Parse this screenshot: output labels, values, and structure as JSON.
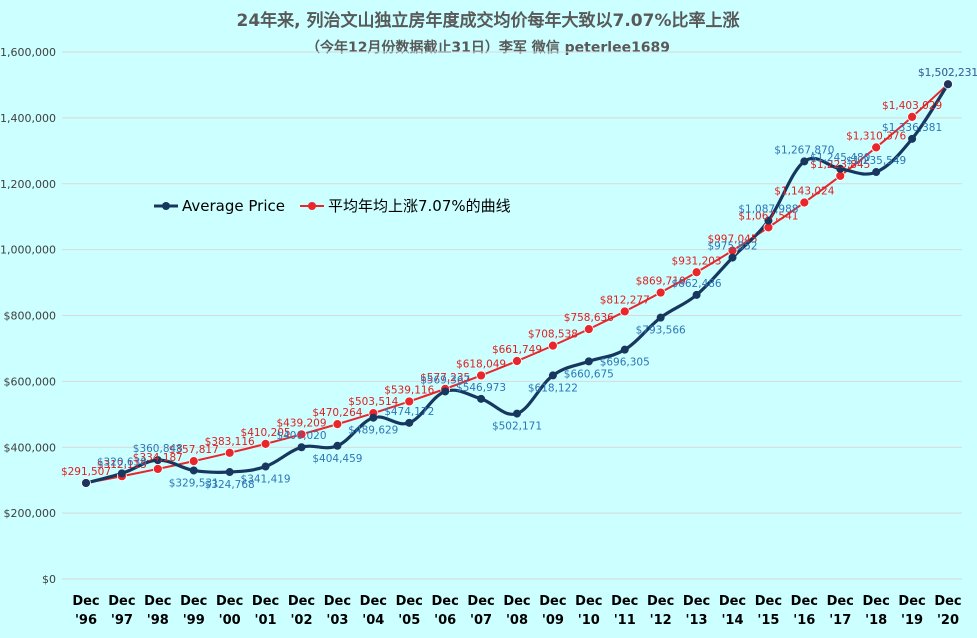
{
  "chart_data": {
    "type": "line",
    "title": "24年来, 列治文山独立房年度成交均价每年大致以7.07%比率上涨",
    "subtitle": "（今年12月份数据截止31日）李军 微信 peterlee1689",
    "categories": [
      "Dec '96",
      "Dec '97",
      "Dec '98",
      "Dec '99",
      "Dec '00",
      "Dec '01",
      "Dec '02",
      "Dec '03",
      "Dec '04",
      "Dec '05",
      "Dec '06",
      "Dec '07",
      "Dec '08",
      "Dec '09",
      "Dec '10",
      "Dec '11",
      "Dec '12",
      "Dec '13",
      "Dec '14",
      "Dec '15",
      "Dec '16",
      "Dec '17",
      "Dec '18",
      "Dec '19",
      "Dec '20"
    ],
    "x_top": [
      "Dec",
      "Dec",
      "Dec",
      "Dec",
      "Dec",
      "Dec",
      "Dec",
      "Dec",
      "Dec",
      "Dec",
      "Dec",
      "Dec",
      "Dec",
      "Dec",
      "Dec",
      "Dec",
      "Dec",
      "Dec",
      "Dec",
      "Dec",
      "Dec",
      "Dec",
      "Dec",
      "Dec",
      "Dec"
    ],
    "x_bottom": [
      "'96",
      "'97",
      "'98",
      "'99",
      "'00",
      "'01",
      "'02",
      "'03",
      "'04",
      "'05",
      "'06",
      "'07",
      "'08",
      "'09",
      "'10",
      "'11",
      "'12",
      "'13",
      "'14",
      "'15",
      "'16",
      "'17",
      "'18",
      "'19",
      "'20"
    ],
    "series": [
      {
        "name": "Average Price",
        "color": "#17375e",
        "values": [
          291507,
          320638,
          360848,
          329531,
          324768,
          341419,
          400020,
          404459,
          489629,
          474172,
          569367,
          546973,
          502171,
          618122,
          660675,
          696305,
          793566,
          862486,
          975852,
          1087988,
          1267870,
          1245480,
          1235549,
          1336381,
          1502231
        ],
        "labels": [
          "",
          "$320,638",
          "$360,848",
          "$329,531",
          "$324,768",
          "$341,419",
          "$400,020",
          "$404,459",
          "$489,629",
          "$474,172",
          "$569,367",
          "$546,973",
          "$502,171",
          "$618,122",
          "$660,675",
          "$696,305",
          "$793,566",
          "$862,486",
          "$975,852",
          "$1,087,988",
          "$1,267,870",
          "$1,245,480",
          "$1,235,549",
          "$1,336,381",
          "$1,502,231"
        ]
      },
      {
        "name": "平均年均上涨7.07%的曲线",
        "color": "#e8262b",
        "values": [
          291507,
          312115,
          334187,
          357817,
          383116,
          410205,
          439209,
          470264,
          503514,
          539116,
          577235,
          618049,
          661749,
          708538,
          758636,
          812277,
          869710,
          931203,
          997045,
          1067541,
          1143024,
          1223845,
          1310376,
          1403029,
          1502231
        ],
        "labels": [
          "$291,507",
          "$312,115",
          "$334,187",
          "$357,817",
          "$383,116",
          "$410,205",
          "$439,209",
          "$470,264",
          "$503,514",
          "$539,116",
          "$577,235",
          "$618,049",
          "$661,749",
          "$708,538",
          "$758,636",
          "$812,277",
          "$869,710",
          "$931,203",
          "$997,045",
          "$1,067,541",
          "$1,143,024",
          "$1,223,845",
          "$1,310,376",
          "$1,403,029",
          "$1,502,231"
        ]
      }
    ],
    "yticks": [
      0,
      200000,
      400000,
      600000,
      800000,
      1000000,
      1200000,
      1400000,
      1600000
    ],
    "ytick_labels": [
      "$0",
      "$200,000",
      "$400,000",
      "$600,000",
      "$800,000",
      "$1,000,000",
      "$1,200,000",
      "$1,400,000",
      "$1,600,000"
    ],
    "ylim": [
      0,
      1600000
    ],
    "grid": true,
    "legend": "left-middle",
    "colors": {
      "background": "#ccffff",
      "grid": "#d9d9d9",
      "avg_label": "#2e75b6",
      "trend_label": "#e02020"
    }
  }
}
